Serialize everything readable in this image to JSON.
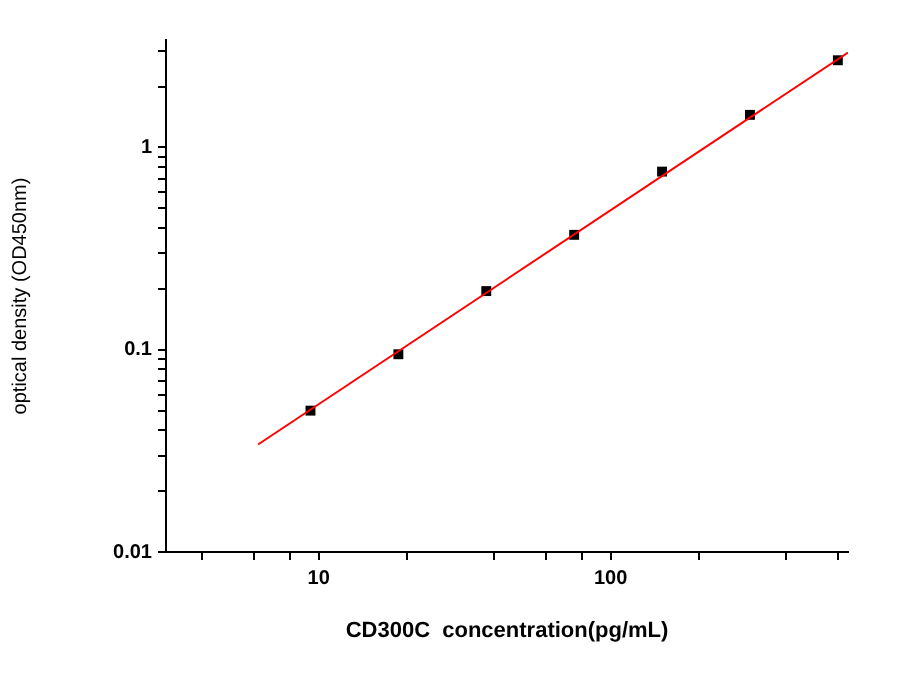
{
  "chart_data": {
    "type": "scatter",
    "xlabel": "CD300C  concentration(pg/mL)",
    "ylabel": "optical density (OD450nm)",
    "log": "xy",
    "grid": false,
    "legend": false,
    "marker": "square",
    "xlim": [
      3,
      650
    ],
    "ylim": [
      0.01,
      3.4
    ],
    "xticks": [
      {
        "value": 4,
        "label": null
      },
      {
        "value": 6,
        "label": null
      },
      {
        "value": 8,
        "label": null
      },
      10,
      {
        "value": 20,
        "label": null
      },
      {
        "value": 40,
        "label": null
      },
      {
        "value": 60,
        "label": null
      },
      {
        "value": 80,
        "label": null
      },
      100,
      {
        "value": 200,
        "label": null
      },
      {
        "value": 400,
        "label": null
      },
      {
        "value": 600,
        "label": null
      }
    ],
    "yticks": [
      0.01,
      {
        "value": 0.02,
        "label": null
      },
      {
        "value": 0.03,
        "label": null
      },
      {
        "value": 0.04,
        "label": null
      },
      {
        "value": 0.05,
        "label": null
      },
      {
        "value": 0.06,
        "label": null
      },
      {
        "value": 0.07,
        "label": null
      },
      {
        "value": 0.08,
        "label": null
      },
      {
        "value": 0.09,
        "label": null
      },
      0.1,
      {
        "value": 0.2,
        "label": null
      },
      {
        "value": 0.3,
        "label": null
      },
      {
        "value": 0.4,
        "label": null
      },
      {
        "value": 0.5,
        "label": null
      },
      {
        "value": 0.6,
        "label": null
      },
      {
        "value": 0.7,
        "label": null
      },
      {
        "value": 0.8,
        "label": null
      },
      {
        "value": 0.9,
        "label": null
      },
      1,
      {
        "value": 2,
        "label": null
      },
      {
        "value": 3,
        "label": null
      }
    ],
    "series": [
      {
        "type": "line",
        "marker": "none",
        "color": "#ff0000",
        "x": [
          6.2,
          650
        ],
        "values": [
          0.034,
          2.95
        ]
      },
      {
        "color": "#000000",
        "x": [
          9.375,
          18.75,
          37.5,
          75,
          150,
          300,
          600
        ],
        "values": [
          0.05,
          0.095,
          0.195,
          0.37,
          0.76,
          1.45,
          2.7
        ]
      }
    ]
  }
}
